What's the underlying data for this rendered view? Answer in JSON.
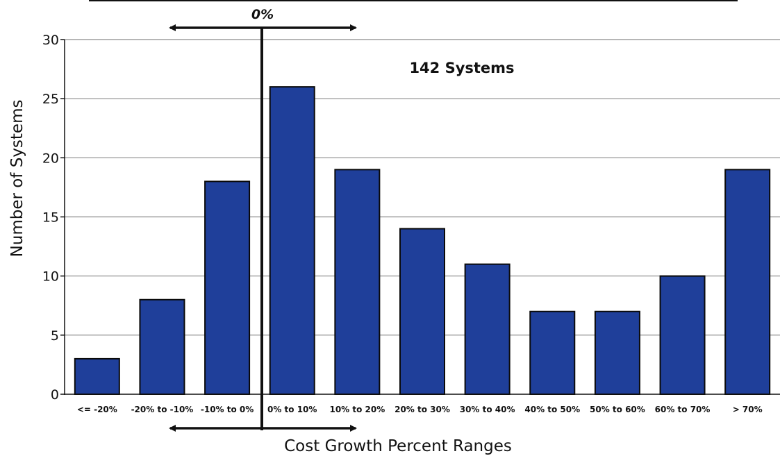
{
  "chart_data": {
    "type": "bar",
    "categories": [
      "<= -20%",
      "-20% to -10%",
      "-10% to 0%",
      "0% to 10%",
      "10% to 20%",
      "20% to 30%",
      "30% to 40%",
      "40% to 50%",
      "50% to 60%",
      "60% to 70%",
      "> 70%"
    ],
    "values": [
      3,
      8,
      18,
      26,
      19,
      14,
      11,
      7,
      7,
      10,
      19
    ],
    "xlabel": "Cost Growth Percent Ranges",
    "ylabel": "Number of Systems",
    "ylim": [
      0,
      30
    ],
    "yticks": [
      0,
      5,
      10,
      15,
      20,
      25,
      30
    ],
    "grid": true,
    "legend": "none",
    "annotations": {
      "total": "142 Systems",
      "zero_marker": "0%"
    },
    "colors": {
      "bar": "#1f3f9a",
      "bar_edge": "#0a0a0a",
      "grid": "#8a8a8a",
      "marker": "#111111"
    }
  }
}
